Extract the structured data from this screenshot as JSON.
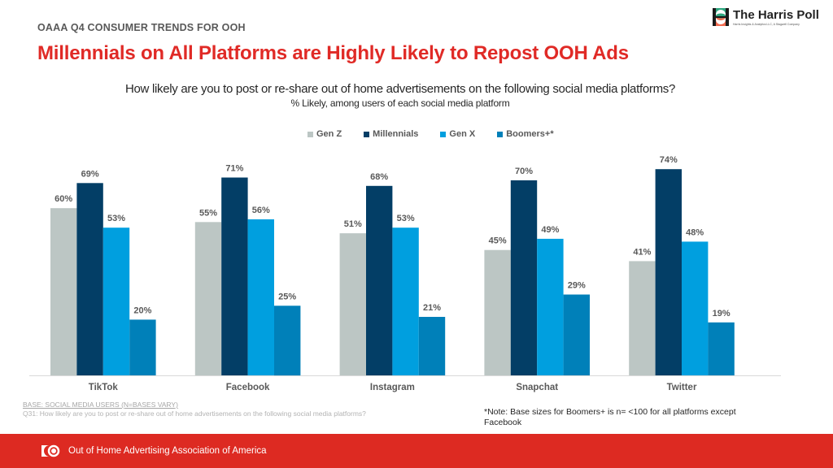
{
  "header": {
    "eyebrow": "OAAA Q4 CONSUMER TRENDS FOR OOH",
    "title": "Millennials on All Platforms are Highly Likely to Repost OOH Ads"
  },
  "logo": {
    "name": "The Harris Poll",
    "subtitle": "Harris Insights & Analytics LLC, A Stagwell Company",
    "icon": "harris-poll-logo-icon"
  },
  "chart_data": {
    "type": "bar",
    "title": "How likely are you to post or re-share out of home advertisements on the following social media platforms?",
    "subtitle": "% Likely, among users of each social media platform",
    "xlabel": "",
    "ylabel": "",
    "ylim": [
      0,
      100
    ],
    "grid": false,
    "legend_position": "top",
    "value_suffix": "%",
    "categories": [
      "TikTok",
      "Facebook",
      "Instagram",
      "Snapchat",
      "Twitter"
    ],
    "series": [
      {
        "name": "Gen Z",
        "color": "#bcc6c4",
        "values": [
          60,
          55,
          51,
          45,
          41
        ]
      },
      {
        "name": "Millennials",
        "color": "#033e66",
        "values": [
          69,
          71,
          68,
          70,
          74
        ]
      },
      {
        "name": "Gen X",
        "color": "#009fdf",
        "values": [
          53,
          56,
          53,
          49,
          48
        ]
      },
      {
        "name": "Boomers+*",
        "color": "#0080b9",
        "values": [
          20,
          25,
          21,
          29,
          19
        ]
      }
    ]
  },
  "notes": {
    "base": "BASE: SOCIAL MEDIA USERS (N=BASES VARY)",
    "question": "Q31: How likely are you to post or re-share out of home advertisements on the following social media platforms?",
    "footnote": "*Note: Base sizes for Boomers+ is n= <100 for all platforms except Facebook"
  },
  "footer": {
    "org": "Out of Home Advertising Association of America",
    "icon": "oaaa-logo-icon",
    "color": "#dd2a22"
  }
}
